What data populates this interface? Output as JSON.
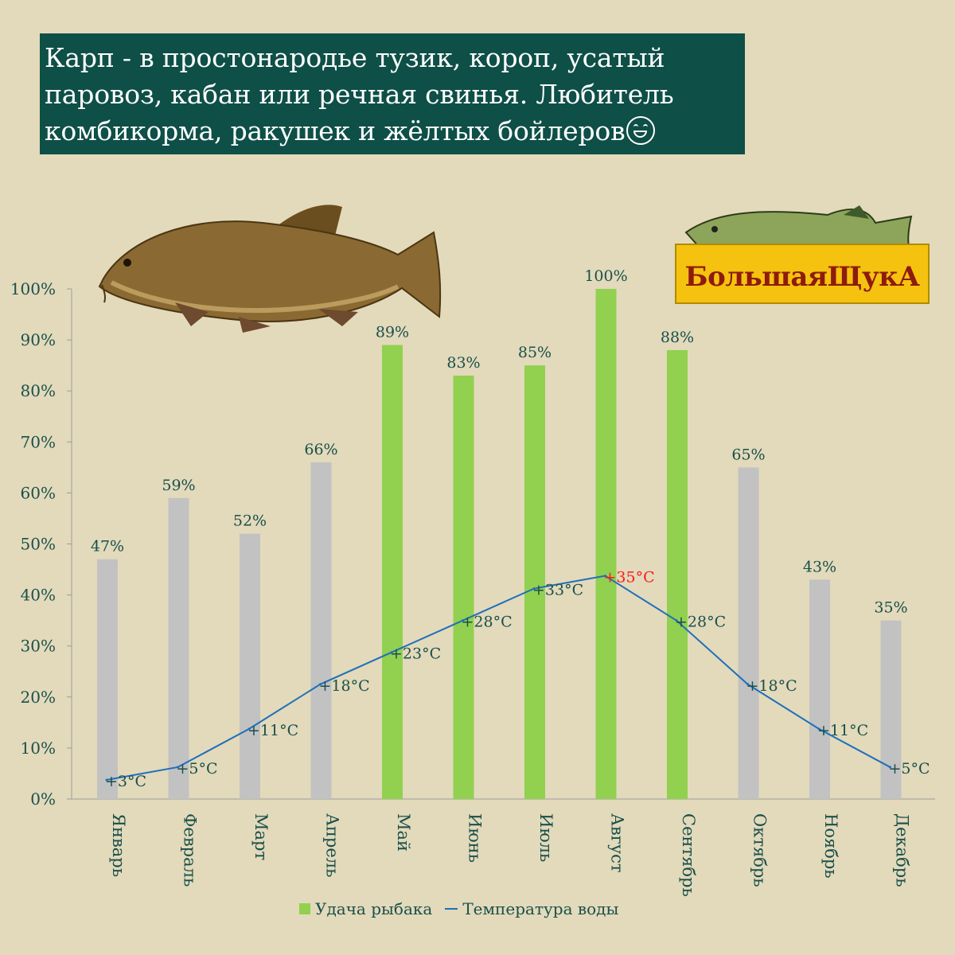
{
  "title_lines": [
    "Карп - в простонародье тузик, короп, усатый",
    "паровоз, кабан или речная свинья. Любитель",
    "комбикорма, ракушек и жёлтых бойлеров"
  ],
  "logo_text": "БольшаяЩукА",
  "chart_data": {
    "type": "bar",
    "categories": [
      "Январь",
      "Февраль",
      "Март",
      "Апрель",
      "Май",
      "Июнь",
      "Июль",
      "Август",
      "Сентябрь",
      "Октябрь",
      "Ноябрь",
      "Декабрь"
    ],
    "ylim": [
      0,
      100
    ],
    "yticks": [
      "0%",
      "10%",
      "20%",
      "30%",
      "40%",
      "50%",
      "60%",
      "70%",
      "80%",
      "90%",
      "100%"
    ],
    "grid": false,
    "legend_position": "bottom",
    "series": [
      {
        "name": "Удача рыбака",
        "type": "bar",
        "values": [
          47,
          59,
          52,
          66,
          89,
          83,
          85,
          100,
          88,
          65,
          43,
          35
        ],
        "labels": [
          "47%",
          "59%",
          "52%",
          "66%",
          "89%",
          "83%",
          "85%",
          "100%",
          "88%",
          "65%",
          "43%",
          "35%"
        ],
        "highlight": [
          false,
          false,
          false,
          false,
          true,
          true,
          true,
          true,
          true,
          false,
          false,
          false
        ],
        "color": "#c2c2c2",
        "highlight_color": "#92d050"
      },
      {
        "name": "Температура воды",
        "type": "line",
        "values": [
          3,
          5,
          11,
          18,
          23,
          28,
          33,
          35,
          28,
          18,
          11,
          5
        ],
        "labels": [
          "+3°C",
          "+5°C",
          "+11°C",
          "+18°C",
          "+23°C",
          "+28°C",
          "+33°C",
          "+35°C",
          "+28°C",
          "+18°C",
          "+11°C",
          "+5°C"
        ],
        "color": "#1f6fba",
        "max_label_color": "#ff1a1a"
      }
    ]
  },
  "colors": {
    "background": "#e2dabb",
    "title_bg": "#0e4f47",
    "text": "#1b4f4a"
  },
  "images": [
    "carp-fish-illustration",
    "pike-logo"
  ]
}
